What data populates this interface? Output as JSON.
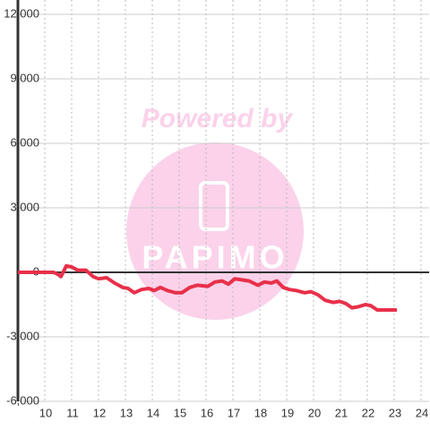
{
  "chart_data": {
    "type": "line",
    "watermark": {
      "title": "Powered by",
      "logo": "PAPIMO"
    },
    "x": [
      9,
      10.33,
      10.5,
      10.6,
      10.8,
      11,
      11.23,
      11.53,
      11.8,
      12,
      12.3,
      12.6,
      12.9,
      13.1,
      13.33,
      13.6,
      13.87,
      14.07,
      14.3,
      14.57,
      14.87,
      15.1,
      15.4,
      15.67,
      16.07,
      16.33,
      16.6,
      16.83,
      17.07,
      17.33,
      17.6,
      17.93,
      18.17,
      18.43,
      18.63,
      18.87,
      19.1,
      19.37,
      19.67,
      19.9,
      20.17,
      20.43,
      20.73,
      20.97,
      21.2,
      21.43,
      21.67,
      21.93,
      22.13,
      22.37,
      23.1
    ],
    "series": [
      {
        "color": "#e8304a",
        "values": [
          0,
          0,
          -100,
          -200,
          300,
          250,
          100,
          100,
          -200,
          -300,
          -250,
          -500,
          -700,
          -750,
          -950,
          -800,
          -750,
          -850,
          -700,
          -850,
          -950,
          -950,
          -700,
          -600,
          -650,
          -450,
          -400,
          -550,
          -300,
          -350,
          -400,
          -600,
          -450,
          -500,
          -400,
          -700,
          -800,
          -850,
          -950,
          -900,
          -1050,
          -1300,
          -1400,
          -1350,
          -1450,
          -1650,
          -1600,
          -1500,
          -1550,
          -1750,
          -1750
        ]
      }
    ],
    "xlim": [
      9,
      24.3
    ],
    "xticks": [
      10,
      11,
      12,
      13,
      14,
      15,
      16,
      17,
      18,
      19,
      20,
      21,
      22,
      23,
      24
    ],
    "ylim": [
      -6000,
      12000
    ],
    "yticks": [
      {
        "value": -6000,
        "label": "-6,000"
      },
      {
        "value": -3000,
        "label": "-3,000"
      },
      0,
      {
        "value": 3000,
        "label": "3,000"
      },
      {
        "value": 6000,
        "label": "6,000"
      },
      {
        "value": 9000,
        "label": "9,000"
      },
      {
        "value": 12000,
        "label": "12,000"
      }
    ],
    "grid": true
  }
}
